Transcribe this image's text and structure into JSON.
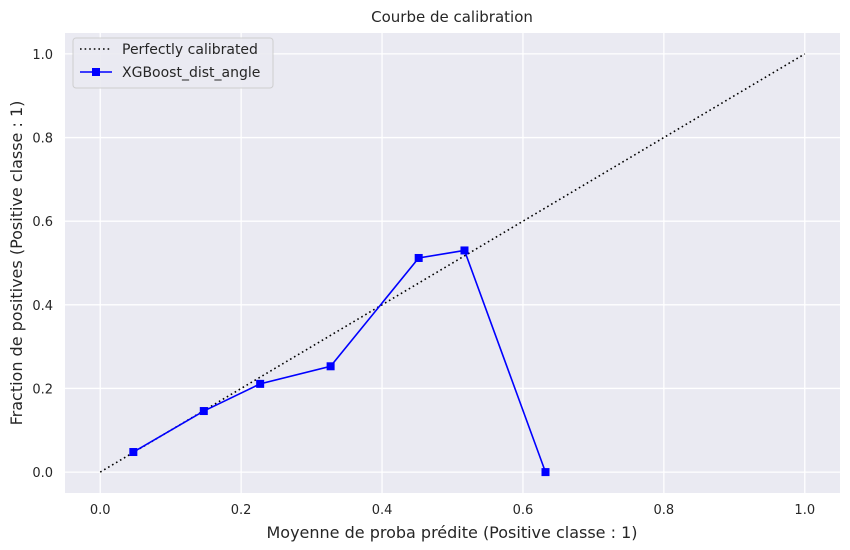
{
  "chart_data": {
    "type": "line",
    "title": "Courbe de calibration",
    "xlabel": "Moyenne de proba prédite (Positive classe : 1)",
    "ylabel": "Fraction de positives (Positive classe : 1)",
    "xlim": [
      -0.05,
      1.05
    ],
    "ylim": [
      -0.05,
      1.05
    ],
    "xticks": [
      0.0,
      0.2,
      0.4,
      0.6,
      0.8,
      1.0
    ],
    "yticks": [
      0.0,
      0.2,
      0.4,
      0.6,
      0.8,
      1.0
    ],
    "xtick_labels": [
      "0.0",
      "0.2",
      "0.4",
      "0.6",
      "0.8",
      "1.0"
    ],
    "ytick_labels": [
      "0.0",
      "0.2",
      "0.4",
      "0.6",
      "0.8",
      "1.0"
    ],
    "grid": true,
    "legend_position": "top-left",
    "series": [
      {
        "name": "Perfectly calibrated",
        "style": "dotted",
        "color": "#000000",
        "marker": "none",
        "x": [
          0.0,
          1.0
        ],
        "y": [
          0.0,
          1.0
        ]
      },
      {
        "name": "XGBoost_dist_angle",
        "style": "solid",
        "color": "#0000ff",
        "marker": "square",
        "x": [
          0.047,
          0.147,
          0.227,
          0.327,
          0.452,
          0.517,
          0.632
        ],
        "y": [
          0.048,
          0.146,
          0.211,
          0.253,
          0.512,
          0.53,
          0.0
        ]
      }
    ]
  },
  "colors": {
    "plot_background": "#eaeaf2",
    "grid": "#ffffff",
    "text": "#262626"
  }
}
